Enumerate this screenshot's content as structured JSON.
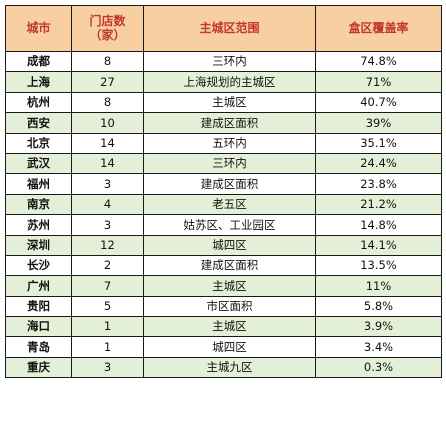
{
  "headers": {
    "city": "城市",
    "stores_line1": "门店数",
    "stores_line2": "（家）",
    "area": "主城区范围",
    "coverage": "盒区覆盖率"
  },
  "rows": [
    {
      "city": "成都",
      "stores": "8",
      "area": "三环内",
      "coverage": "74.8%"
    },
    {
      "city": "上海",
      "stores": "27",
      "area": "上海规划的主城区",
      "coverage": "71%"
    },
    {
      "city": "杭州",
      "stores": "8",
      "area": "主城区",
      "coverage": "40.7%"
    },
    {
      "city": "西安",
      "stores": "10",
      "area": "建成区面积",
      "coverage": "39%"
    },
    {
      "city": "北京",
      "stores": "14",
      "area": "五环内",
      "coverage": "35.1%"
    },
    {
      "city": "武汉",
      "stores": "14",
      "area": "三环内",
      "coverage": "24.4%"
    },
    {
      "city": "福州",
      "stores": "3",
      "area": "建成区面积",
      "coverage": "23.8%"
    },
    {
      "city": "南京",
      "stores": "4",
      "area": "老五区",
      "coverage": "21.2%"
    },
    {
      "city": "苏州",
      "stores": "3",
      "area": "姑苏区、工业园区",
      "coverage": "14.8%"
    },
    {
      "city": "深圳",
      "stores": "12",
      "area": "城四区",
      "coverage": "14.1%"
    },
    {
      "city": "长沙",
      "stores": "2",
      "area": "建成区面积",
      "coverage": "13.5%"
    },
    {
      "city": "广州",
      "stores": "7",
      "area": "主城区",
      "coverage": "11%"
    },
    {
      "city": "贵阳",
      "stores": "5",
      "area": "市区面积",
      "coverage": "5.8%"
    },
    {
      "city": "海口",
      "stores": "1",
      "area": "主城区",
      "coverage": "3.9%"
    },
    {
      "city": "青岛",
      "stores": "1",
      "area": "城四区",
      "coverage": "3.4%"
    },
    {
      "city": "重庆",
      "stores": "3",
      "area": "主城九区",
      "coverage": "0.3%"
    }
  ]
}
